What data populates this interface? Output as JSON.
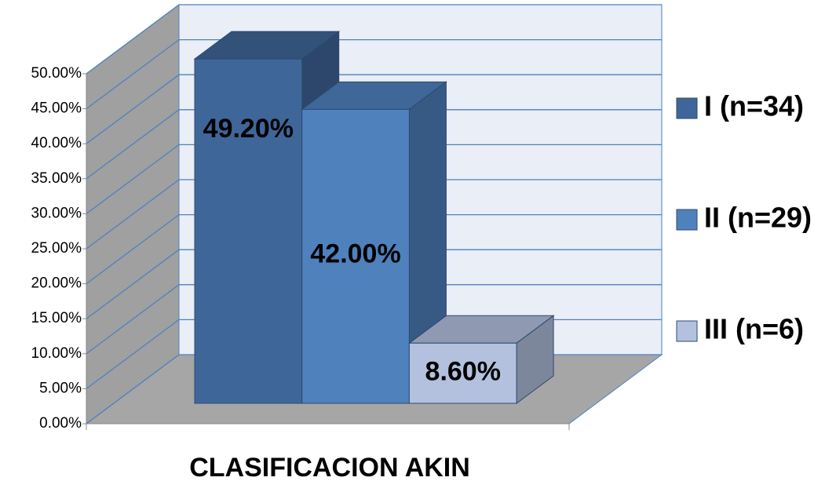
{
  "chart_data": {
    "type": "bar3d",
    "x_label": "CLASIFICACION AKIN",
    "series": [
      {
        "name": "I (n=34)",
        "color": "#3f6699",
        "values": [
          49.2
        ],
        "value_labels": [
          "49.20%"
        ]
      },
      {
        "name": "II (n=29)",
        "color": "#4f81bd",
        "values": [
          42.0
        ],
        "value_labels": [
          "42.00%"
        ]
      },
      {
        "name": "III (n=6)",
        "color": "#b3c1de",
        "values": [
          8.6
        ],
        "value_labels": [
          "8.60%"
        ]
      }
    ],
    "ylim": [
      0,
      50
    ],
    "yticks": [
      {
        "value": 0,
        "label": "0.00%"
      },
      {
        "value": 5,
        "label": "5.00%"
      },
      {
        "value": 10,
        "label": "10.00%"
      },
      {
        "value": 15,
        "label": "15.00%"
      },
      {
        "value": 20,
        "label": "20.00%"
      },
      {
        "value": 25,
        "label": "25.00%"
      },
      {
        "value": 30,
        "label": "30.00%"
      },
      {
        "value": 35,
        "label": "35.00%"
      },
      {
        "value": 40,
        "label": "40.00%"
      },
      {
        "value": 45,
        "label": "45.00%"
      },
      {
        "value": 50,
        "label": "50.00%"
      }
    ],
    "grid": true,
    "legend": "right"
  }
}
